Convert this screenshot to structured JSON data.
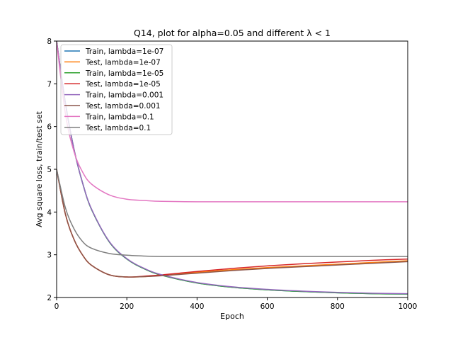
{
  "chart_data": {
    "type": "line",
    "title": "Q14, plot for alpha=0.05 and different λ < 1",
    "xlabel": "Epoch",
    "ylabel": "Avg square loss, train/test set",
    "xlim": [
      0,
      1000
    ],
    "ylim": [
      2,
      8
    ],
    "xticks": [
      0,
      200,
      400,
      600,
      800,
      1000
    ],
    "yticks": [
      2,
      3,
      4,
      5,
      6,
      7,
      8
    ],
    "grid": false,
    "legend_position": "top-left",
    "series": [
      {
        "name": "Train, lambda=1e-07",
        "color": "#1f77b4",
        "x": [
          0,
          25,
          50,
          75,
          100,
          150,
          200,
          250,
          300,
          400,
          500,
          600,
          700,
          800,
          900,
          1000
        ],
        "y": [
          8.0,
          6.55,
          5.45,
          4.65,
          4.05,
          3.3,
          2.9,
          2.67,
          2.52,
          2.34,
          2.24,
          2.18,
          2.14,
          2.11,
          2.09,
          2.08
        ]
      },
      {
        "name": "Test, lambda=1e-07",
        "color": "#ff7f0e",
        "x": [
          0,
          25,
          50,
          75,
          100,
          150,
          200,
          250,
          300,
          400,
          500,
          600,
          700,
          800,
          900,
          1000
        ],
        "y": [
          5.0,
          3.95,
          3.35,
          2.98,
          2.75,
          2.53,
          2.48,
          2.49,
          2.52,
          2.59,
          2.65,
          2.7,
          2.74,
          2.78,
          2.82,
          2.86
        ]
      },
      {
        "name": "Train, lambda=1e-05",
        "color": "#2ca02c",
        "x": [
          0,
          25,
          50,
          75,
          100,
          150,
          200,
          250,
          300,
          400,
          500,
          600,
          700,
          800,
          900,
          1000
        ],
        "y": [
          8.0,
          6.55,
          5.45,
          4.65,
          4.05,
          3.3,
          2.9,
          2.67,
          2.52,
          2.34,
          2.24,
          2.18,
          2.14,
          2.11,
          2.09,
          2.08
        ]
      },
      {
        "name": "Test, lambda=1e-05",
        "color": "#d62728",
        "x": [
          0,
          25,
          50,
          75,
          100,
          150,
          200,
          250,
          300,
          400,
          500,
          600,
          700,
          800,
          900,
          1000
        ],
        "y": [
          5.0,
          3.95,
          3.35,
          2.98,
          2.75,
          2.53,
          2.48,
          2.5,
          2.53,
          2.61,
          2.68,
          2.74,
          2.79,
          2.83,
          2.87,
          2.9
        ]
      },
      {
        "name": "Train, lambda=0.001",
        "color": "#9467bd",
        "x": [
          0,
          25,
          50,
          75,
          100,
          150,
          200,
          250,
          300,
          400,
          500,
          600,
          700,
          800,
          900,
          1000
        ],
        "y": [
          8.0,
          6.55,
          5.45,
          4.65,
          4.06,
          3.31,
          2.91,
          2.68,
          2.53,
          2.35,
          2.25,
          2.19,
          2.15,
          2.12,
          2.1,
          2.09
        ]
      },
      {
        "name": "Test, lambda=0.001",
        "color": "#8c564b",
        "x": [
          0,
          25,
          50,
          75,
          100,
          150,
          200,
          250,
          300,
          400,
          500,
          600,
          700,
          800,
          900,
          1000
        ],
        "y": [
          5.0,
          3.95,
          3.35,
          2.98,
          2.75,
          2.53,
          2.48,
          2.49,
          2.51,
          2.57,
          2.63,
          2.68,
          2.72,
          2.76,
          2.8,
          2.84
        ]
      },
      {
        "name": "Train, lambda=0.1",
        "color": "#e377c2",
        "x": [
          0,
          25,
          50,
          75,
          100,
          150,
          200,
          250,
          300,
          400,
          500,
          600,
          700,
          800,
          900,
          1000
        ],
        "y": [
          8.0,
          6.3,
          5.4,
          4.92,
          4.65,
          4.4,
          4.3,
          4.27,
          4.25,
          4.24,
          4.24,
          4.24,
          4.24,
          4.24,
          4.24,
          4.24
        ]
      },
      {
        "name": "Test, lambda=0.1",
        "color": "#7f7f7f",
        "x": [
          0,
          25,
          50,
          75,
          100,
          150,
          200,
          250,
          300,
          400,
          500,
          600,
          700,
          800,
          900,
          1000
        ],
        "y": [
          5.0,
          4.1,
          3.6,
          3.3,
          3.15,
          3.03,
          2.99,
          2.97,
          2.96,
          2.96,
          2.96,
          2.96,
          2.96,
          2.96,
          2.96,
          2.96
        ]
      }
    ]
  }
}
